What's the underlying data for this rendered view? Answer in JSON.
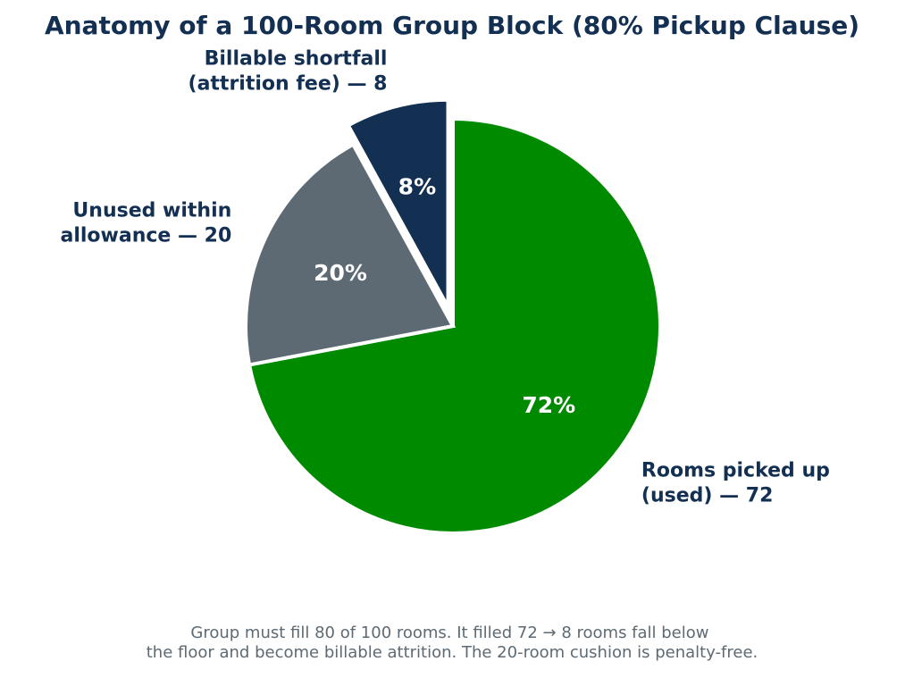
{
  "chart_data": {
    "type": "pie",
    "title": "Anatomy of a 100-Room Group Block (80% Pickup Clause)",
    "start_angle_deg": 90,
    "direction": "clockwise",
    "slices": [
      {
        "key": "picked-up",
        "label_lines": [
          "Rooms picked up",
          "(used) — 72"
        ],
        "value": 72,
        "pct_label": "72%",
        "color": "#008a00",
        "exploded": false
      },
      {
        "key": "unused-allowance",
        "label_lines": [
          "Unused within",
          "allowance — 20"
        ],
        "value": 20,
        "pct_label": "20%",
        "color": "#5e6a73",
        "exploded": false
      },
      {
        "key": "billable-shortfall",
        "label_lines": [
          "Billable shortfall",
          "(attrition fee) — 8"
        ],
        "value": 8,
        "pct_label": "8%",
        "color": "#132f52",
        "exploded": true
      }
    ],
    "caption_lines": [
      "Group must fill 80 of 100 rooms. It filled 72 → 8 rooms fall below",
      "the floor and become billable attrition. The 20-room cushion is penalty-free."
    ]
  },
  "colors": {
    "title": "#132f52",
    "label": "#132f52",
    "caption": "#5e6a73",
    "slice_edge": "#ffffff"
  }
}
